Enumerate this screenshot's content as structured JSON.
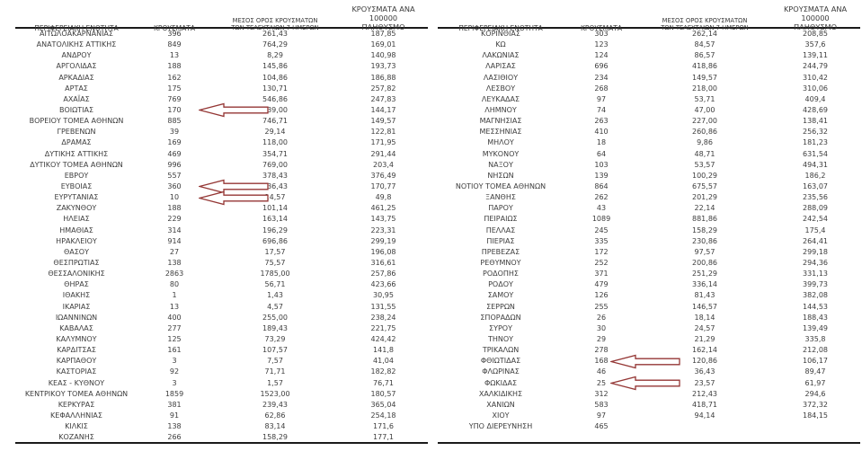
{
  "colors": {
    "arrow": "#943634",
    "text": "#3d3d3d",
    "border": "#1a1a1a",
    "background": "#ffffff"
  },
  "headers": {
    "region": "ΠΕΡΙΦΕΡΕΙΑΚΗ ΕΝΟΤΗΤΑ",
    "cases": "ΚΡΟΥΣΜΑΤΑ",
    "avg7_line1": "ΜΕΣΟΣ ΟΡΟΣ ΚΡΟΥΣΜΑΤΩΝ",
    "avg7_line2": "ΤΩΝ ΤΕΛΕΥΤΑΙΩΝ 7 ΗΜΕΡΩΝ",
    "per100k_line1": "ΚΡΟΥΣΜΑΤΑ ΑΝΑ 100000",
    "per100k_line2": "ΠΛΗΘΥΣΜΟ"
  },
  "left_rows": [
    {
      "region": "ΑΙΤΩΛΟΑΚΑΡΝΑΝΙΑΣ",
      "cases": "396",
      "avg7": "261,43",
      "per100k": "187,85"
    },
    {
      "region": "ΑΝΑΤΟΛΙΚΗΣ ΑΤΤΙΚΗΣ",
      "cases": "849",
      "avg7": "764,29",
      "per100k": "169,01"
    },
    {
      "region": "ΑΝΔΡΟΥ",
      "cases": "13",
      "avg7": "8,29",
      "per100k": "140,98"
    },
    {
      "region": "ΑΡΓΟΛΙΔΑΣ",
      "cases": "188",
      "avg7": "145,86",
      "per100k": "193,73"
    },
    {
      "region": "ΑΡΚΑΔΙΑΣ",
      "cases": "162",
      "avg7": "104,86",
      "per100k": "186,88"
    },
    {
      "region": "ΑΡΤΑΣ",
      "cases": "175",
      "avg7": "130,71",
      "per100k": "257,82"
    },
    {
      "region": "ΑΧΑΪΑΣ",
      "cases": "769",
      "avg7": "546,86",
      "per100k": "247,83"
    },
    {
      "region": "ΒΟΙΩΤΙΑΣ",
      "cases": "170",
      "avg7": "139,00",
      "per100k": "144,17",
      "arrow": true
    },
    {
      "region": "ΒΟΡΕΙΟΥ ΤΟΜΕΑ ΑΘΗΝΩΝ",
      "cases": "885",
      "avg7": "746,71",
      "per100k": "149,57"
    },
    {
      "region": "ΓΡΕΒΕΝΩΝ",
      "cases": "39",
      "avg7": "29,14",
      "per100k": "122,81"
    },
    {
      "region": "ΔΡΑΜΑΣ",
      "cases": "169",
      "avg7": "118,00",
      "per100k": "171,95"
    },
    {
      "region": "ΔΥΤΙΚΗΣ ΑΤΤΙΚΗΣ",
      "cases": "469",
      "avg7": "354,71",
      "per100k": "291,44"
    },
    {
      "region": "ΔΥΤΙΚΟΥ ΤΟΜΕΑ ΑΘΗΝΩΝ",
      "cases": "996",
      "avg7": "769,00",
      "per100k": "203,4"
    },
    {
      "region": "ΕΒΡΟΥ",
      "cases": "557",
      "avg7": "378,43",
      "per100k": "376,49"
    },
    {
      "region": "ΕΥΒΟΙΑΣ",
      "cases": "360",
      "avg7": "336,43",
      "per100k": "170,77",
      "arrow": true
    },
    {
      "region": "ΕΥΡΥΤΑΝΙΑΣ",
      "cases": "10",
      "avg7": "14,57",
      "per100k": "49,8",
      "arrow": true
    },
    {
      "region": "ΖΑΚΥΝΘΟΥ",
      "cases": "188",
      "avg7": "101,14",
      "per100k": "461,25"
    },
    {
      "region": "ΗΛΕΙΑΣ",
      "cases": "229",
      "avg7": "163,14",
      "per100k": "143,75"
    },
    {
      "region": "ΗΜΑΘΙΑΣ",
      "cases": "314",
      "avg7": "196,29",
      "per100k": "223,31"
    },
    {
      "region": "ΗΡΑΚΛΕΙΟΥ",
      "cases": "914",
      "avg7": "696,86",
      "per100k": "299,19"
    },
    {
      "region": "ΘΑΣΟΥ",
      "cases": "27",
      "avg7": "17,57",
      "per100k": "196,08"
    },
    {
      "region": "ΘΕΣΠΡΩΤΙΑΣ",
      "cases": "138",
      "avg7": "75,57",
      "per100k": "316,61"
    },
    {
      "region": "ΘΕΣΣΑΛΟΝΙΚΗΣ",
      "cases": "2863",
      "avg7": "1785,00",
      "per100k": "257,86"
    },
    {
      "region": "ΘΗΡΑΣ",
      "cases": "80",
      "avg7": "56,71",
      "per100k": "423,66"
    },
    {
      "region": "ΙΘΑΚΗΣ",
      "cases": "1",
      "avg7": "1,43",
      "per100k": "30,95"
    },
    {
      "region": "ΙΚΑΡΙΑΣ",
      "cases": "13",
      "avg7": "4,57",
      "per100k": "131,55"
    },
    {
      "region": "ΙΩΑΝΝΙΝΩΝ",
      "cases": "400",
      "avg7": "255,00",
      "per100k": "238,24"
    },
    {
      "region": "ΚΑΒΑΛΑΣ",
      "cases": "277",
      "avg7": "189,43",
      "per100k": "221,75"
    },
    {
      "region": "ΚΑΛΥΜΝΟΥ",
      "cases": "125",
      "avg7": "73,29",
      "per100k": "424,42"
    },
    {
      "region": "ΚΑΡΔΙΤΣΑΣ",
      "cases": "161",
      "avg7": "107,57",
      "per100k": "141,8"
    },
    {
      "region": "ΚΑΡΠΑΘΟΥ",
      "cases": "3",
      "avg7": "7,57",
      "per100k": "41,04"
    },
    {
      "region": "ΚΑΣΤΟΡΙΑΣ",
      "cases": "92",
      "avg7": "71,71",
      "per100k": "182,82"
    },
    {
      "region": "ΚΕΑΣ - ΚΥΘΝΟΥ",
      "cases": "3",
      "avg7": "1,57",
      "per100k": "76,71"
    },
    {
      "region": "ΚΕΝΤΡΙΚΟΥ ΤΟΜΕΑ ΑΘΗΝΩΝ",
      "cases": "1859",
      "avg7": "1523,00",
      "per100k": "180,57"
    },
    {
      "region": "ΚΕΡΚΥΡΑΣ",
      "cases": "381",
      "avg7": "239,43",
      "per100k": "365,04"
    },
    {
      "region": "ΚΕΦΑΛΛΗΝΙΑΣ",
      "cases": "91",
      "avg7": "62,86",
      "per100k": "254,18"
    },
    {
      "region": "ΚΙΛΚΙΣ",
      "cases": "138",
      "avg7": "83,14",
      "per100k": "171,6"
    },
    {
      "region": "ΚΟΖΑΝΗΣ",
      "cases": "266",
      "avg7": "158,29",
      "per100k": "177,1"
    }
  ],
  "right_rows": [
    {
      "region": "ΚΟΡΙΝΘΙΑΣ",
      "cases": "303",
      "avg7": "262,14",
      "per100k": "208,85"
    },
    {
      "region": "ΚΩ",
      "cases": "123",
      "avg7": "84,57",
      "per100k": "357,6"
    },
    {
      "region": "ΛΑΚΩΝΙΑΣ",
      "cases": "124",
      "avg7": "86,57",
      "per100k": "139,11"
    },
    {
      "region": "ΛΑΡΙΣΑΣ",
      "cases": "696",
      "avg7": "418,86",
      "per100k": "244,79"
    },
    {
      "region": "ΛΑΣΙΘΙΟΥ",
      "cases": "234",
      "avg7": "149,57",
      "per100k": "310,42"
    },
    {
      "region": "ΛΕΣΒΟΥ",
      "cases": "268",
      "avg7": "218,00",
      "per100k": "310,06"
    },
    {
      "region": "ΛΕΥΚΑΔΑΣ",
      "cases": "97",
      "avg7": "53,71",
      "per100k": "409,4"
    },
    {
      "region": "ΛΗΜΝΟΥ",
      "cases": "74",
      "avg7": "47,00",
      "per100k": "428,69"
    },
    {
      "region": "ΜΑΓΝΗΣΙΑΣ",
      "cases": "263",
      "avg7": "227,00",
      "per100k": "138,41"
    },
    {
      "region": "ΜΕΣΣΗΝΙΑΣ",
      "cases": "410",
      "avg7": "260,86",
      "per100k": "256,32"
    },
    {
      "region": "ΜΗΛΟΥ",
      "cases": "18",
      "avg7": "9,86",
      "per100k": "181,23"
    },
    {
      "region": "ΜΥΚΟΝΟΥ",
      "cases": "64",
      "avg7": "48,71",
      "per100k": "631,54"
    },
    {
      "region": "ΝΑΞΟΥ",
      "cases": "103",
      "avg7": "53,57",
      "per100k": "494,31"
    },
    {
      "region": "ΝΗΣΩΝ",
      "cases": "139",
      "avg7": "100,29",
      "per100k": "186,2"
    },
    {
      "region": "ΝΟΤΙΟΥ ΤΟΜΕΑ ΑΘΗΝΩΝ",
      "cases": "864",
      "avg7": "675,57",
      "per100k": "163,07"
    },
    {
      "region": "ΞΑΝΘΗΣ",
      "cases": "262",
      "avg7": "201,29",
      "per100k": "235,56"
    },
    {
      "region": "ΠΑΡΟΥ",
      "cases": "43",
      "avg7": "22,14",
      "per100k": "288,09"
    },
    {
      "region": "ΠΕΙΡΑΙΩΣ",
      "cases": "1089",
      "avg7": "881,86",
      "per100k": "242,54"
    },
    {
      "region": "ΠΕΛΛΑΣ",
      "cases": "245",
      "avg7": "158,29",
      "per100k": "175,4"
    },
    {
      "region": "ΠΙΕΡΙΑΣ",
      "cases": "335",
      "avg7": "230,86",
      "per100k": "264,41"
    },
    {
      "region": "ΠΡΕΒΕΖΑΣ",
      "cases": "172",
      "avg7": "97,57",
      "per100k": "299,18"
    },
    {
      "region": "ΡΕΘΥΜΝΟΥ",
      "cases": "252",
      "avg7": "200,86",
      "per100k": "294,36"
    },
    {
      "region": "ΡΟΔΟΠΗΣ",
      "cases": "371",
      "avg7": "251,29",
      "per100k": "331,13"
    },
    {
      "region": "ΡΟΔΟΥ",
      "cases": "479",
      "avg7": "336,14",
      "per100k": "399,73"
    },
    {
      "region": "ΣΑΜΟΥ",
      "cases": "126",
      "avg7": "81,43",
      "per100k": "382,08"
    },
    {
      "region": "ΣΕΡΡΩΝ",
      "cases": "255",
      "avg7": "146,57",
      "per100k": "144,53"
    },
    {
      "region": "ΣΠΟΡΑΔΩΝ",
      "cases": "26",
      "avg7": "18,14",
      "per100k": "188,43"
    },
    {
      "region": "ΣΥΡΟΥ",
      "cases": "30",
      "avg7": "24,57",
      "per100k": "139,49"
    },
    {
      "region": "ΤΗΝΟΥ",
      "cases": "29",
      "avg7": "21,29",
      "per100k": "335,8"
    },
    {
      "region": "ΤΡΙΚΑΛΩΝ",
      "cases": "278",
      "avg7": "162,14",
      "per100k": "212,08"
    },
    {
      "region": "ΦΘΙΩΤΙΔΑΣ",
      "cases": "168",
      "avg7": "120,86",
      "per100k": "106,17",
      "arrow": true
    },
    {
      "region": "ΦΛΩΡΙΝΑΣ",
      "cases": "46",
      "avg7": "36,43",
      "per100k": "89,47"
    },
    {
      "region": "ΦΩΚΙΔΑΣ",
      "cases": "25",
      "avg7": "23,57",
      "per100k": "61,97",
      "arrow": true
    },
    {
      "region": "ΧΑΛΚΙΔΙΚΗΣ",
      "cases": "312",
      "avg7": "212,43",
      "per100k": "294,6"
    },
    {
      "region": "ΧΑΝΙΩΝ",
      "cases": "583",
      "avg7": "418,71",
      "per100k": "372,32"
    },
    {
      "region": "ΧΙΟΥ",
      "cases": "97",
      "avg7": "94,14",
      "per100k": "184,15"
    },
    {
      "region": "ΥΠΟ ΔΙΕΡΕΥΝΗΣΗ",
      "cases": "465",
      "avg7": "",
      "per100k": ""
    }
  ]
}
